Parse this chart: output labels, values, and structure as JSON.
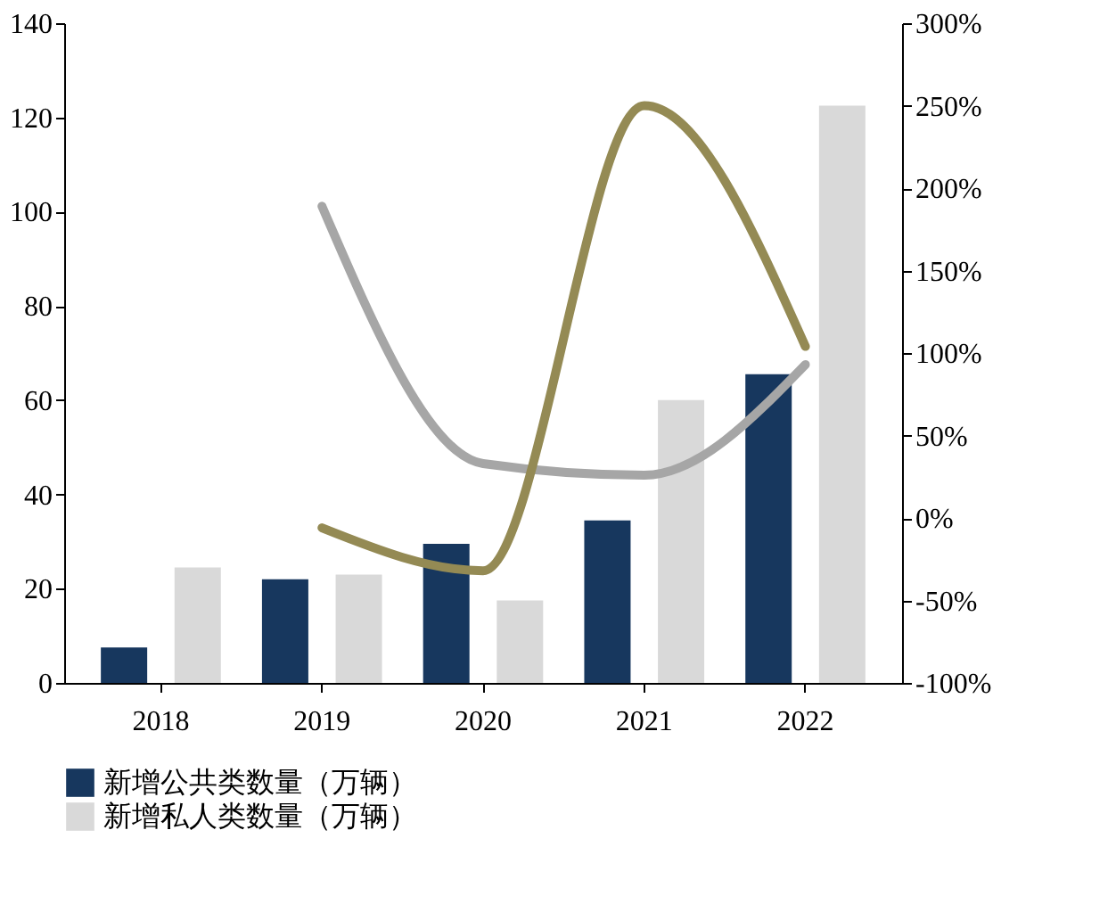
{
  "chart_data": {
    "type": "bar",
    "categories": [
      "2018",
      "2019",
      "2020",
      "2021",
      "2022"
    ],
    "series": [
      {
        "name": "新增公共类数量（万辆）",
        "color": "#17375e",
        "values": [
          7.5,
          22,
          29.5,
          34.5,
          65.5
        ]
      },
      {
        "name": "新增私人类数量（万辆）",
        "color": "#d9d9d9",
        "values": [
          24.5,
          23,
          17.5,
          60,
          122.5
        ]
      },
      {
        "type": "line",
        "axis": "y2",
        "color": "#a6a6a6",
        "values": [
          null,
          189,
          33,
          26,
          93
        ]
      },
      {
        "type": "line",
        "axis": "y2",
        "color": "#948a54",
        "values": [
          null,
          -6,
          -32,
          250,
          104
        ]
      }
    ],
    "ylim": [
      0,
      140
    ],
    "yticks": [
      0,
      20,
      40,
      60,
      80,
      100,
      120,
      140
    ],
    "y2lim": [
      -100,
      300
    ],
    "y2ticks": [
      {
        "value": -100,
        "label": "-100%"
      },
      {
        "value": -50,
        "label": "-50%"
      },
      {
        "value": 0,
        "label": "0%"
      },
      {
        "value": 50,
        "label": "50%"
      },
      {
        "value": 100,
        "label": "100%"
      },
      {
        "value": 150,
        "label": "150%"
      },
      {
        "value": 200,
        "label": "200%"
      },
      {
        "value": 250,
        "label": "250%"
      },
      {
        "value": 300,
        "label": "300%"
      }
    ],
    "grid": false,
    "legend": "bottom"
  }
}
